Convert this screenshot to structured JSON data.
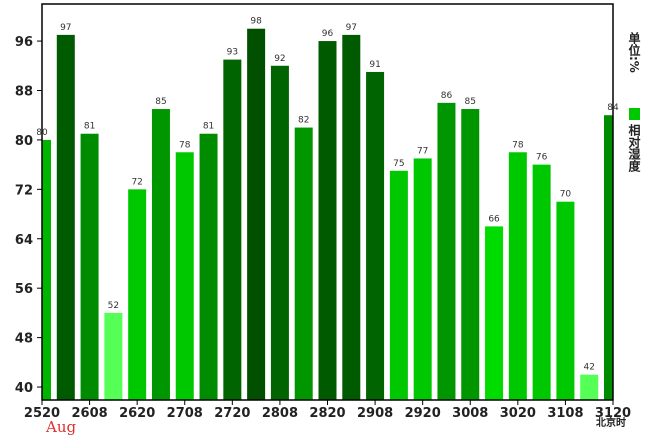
{
  "chart_data": {
    "type": "bar",
    "categories": [
      "2520",
      null,
      "2608",
      null,
      "2620",
      null,
      "2708",
      null,
      "2720",
      null,
      "2808",
      null,
      "2820",
      null,
      "2908",
      null,
      "2920",
      null,
      "3008",
      null,
      "3020",
      null,
      "3108",
      null,
      "3120"
    ],
    "series": [
      {
        "name": "相对湿度",
        "color": "#00c800",
        "values": [
          80,
          97,
          81,
          52,
          72,
          85,
          78,
          81,
          93,
          98,
          92,
          82,
          96,
          97,
          91,
          75,
          77,
          86,
          85,
          66,
          78,
          76,
          70,
          42,
          84
        ],
        "colors": [
          "#00b400",
          "#005a00",
          "#008c00",
          "#55ff55",
          "#00c800",
          "#009600",
          "#00c800",
          "#008c00",
          "#006400",
          "#005000",
          "#006400",
          "#009600",
          "#005a00",
          "#005a00",
          "#006400",
          "#00c800",
          "#00c800",
          "#009600",
          "#009600",
          "#00dc00",
          "#00c800",
          "#00c800",
          "#00c800",
          "#55ff55",
          "#008c00"
        ]
      }
    ],
    "ylim": [
      37.9,
      102
    ],
    "yticks": [
      40,
      48,
      56,
      64,
      72,
      80,
      88,
      96
    ],
    "unit_label": "单位:%",
    "month_label": "Aug",
    "time_label": "北京时"
  }
}
